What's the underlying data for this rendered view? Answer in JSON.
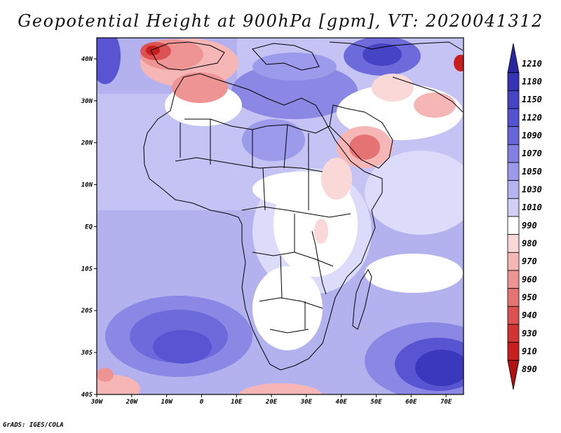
{
  "title": "Geopotential Height at 900hPa [gpm], VT: 2020041312",
  "credit": "GrADS: IGES/COLA",
  "map": {
    "region": "Africa and Middle East",
    "lon_range": [
      -30,
      75
    ],
    "lat_range": [
      -40,
      45
    ],
    "y_ticks": [
      "40N",
      "30N",
      "20N",
      "10N",
      "EQ",
      "10S",
      "20S",
      "30S",
      "40S"
    ],
    "x_ticks": [
      "30W",
      "20W",
      "10W",
      "0",
      "10E",
      "20E",
      "30E",
      "40E",
      "50E",
      "60E",
      "70E"
    ]
  },
  "colorbar": {
    "labels": [
      "1210",
      "1180",
      "1150",
      "1120",
      "1090",
      "1070",
      "1050",
      "1030",
      "1010",
      "990",
      "980",
      "970",
      "960",
      "950",
      "940",
      "930",
      "910",
      "890"
    ],
    "colors": [
      "#2a26a0",
      "#3633b4",
      "#4643c4",
      "#5552d0",
      "#6966da",
      "#8280e3",
      "#9c9aea",
      "#b5b4f0",
      "#d0d0f7",
      "#ffffff",
      "#fbd8d8",
      "#f6b6b6",
      "#ee9494",
      "#e57373",
      "#dc5252",
      "#d23434",
      "#c81e1e",
      "#b01212"
    ]
  }
}
